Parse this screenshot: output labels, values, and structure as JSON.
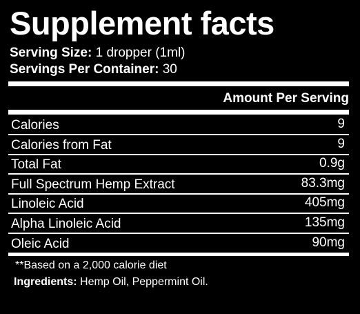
{
  "header": {
    "title": "Supplement facts",
    "serving_size": {
      "label": "Serving Size:",
      "value": "1 dropper (1ml)"
    },
    "servings_per_container": {
      "label": "Servings Per Container:",
      "value": "30"
    }
  },
  "table": {
    "column_header": "Amount Per Serving",
    "rows": [
      [
        "Calories",
        "9"
      ],
      [
        "Calories from Fat",
        "9"
      ],
      [
        "Total Fat",
        "0.9g"
      ],
      [
        "Full Spectrum Hemp Extract",
        "83.3mg"
      ],
      [
        "Linoleic Acid",
        "405mg"
      ],
      [
        "Alpha Linoleic Acid",
        "135mg"
      ],
      [
        "Oleic Acid",
        "90mg"
      ]
    ]
  },
  "footer": {
    "note": "**Based on a 2,000 calorie diet",
    "ingredients": {
      "label": "Ingredients:",
      "value": "Hemp Oil, Peppermint Oil."
    }
  }
}
